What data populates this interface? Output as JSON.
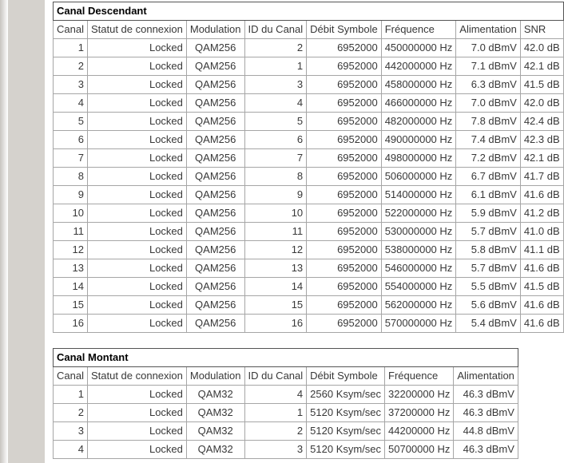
{
  "page": {
    "background_color": "#d5d2cd",
    "content_background": "#ffffff",
    "table_outer_border_color": "#545454",
    "cell_border_color": "#a6a6a6",
    "text_color": "#383838"
  },
  "downstream": {
    "title": "Canal Descendant",
    "columns": [
      "Canal",
      "Statut de connexion",
      "Modulation",
      "ID du Canal",
      "Débit Symbole",
      "Fréquence",
      "Alimentation",
      "SNR"
    ],
    "rows": [
      [
        "1",
        "Locked",
        "QAM256",
        "2",
        "6952000",
        "450000000 Hz",
        "7.0 dBmV",
        "42.0 dB"
      ],
      [
        "2",
        "Locked",
        "QAM256",
        "1",
        "6952000",
        "442000000 Hz",
        "7.1 dBmV",
        "42.1 dB"
      ],
      [
        "3",
        "Locked",
        "QAM256",
        "3",
        "6952000",
        "458000000 Hz",
        "6.3 dBmV",
        "41.5 dB"
      ],
      [
        "4",
        "Locked",
        "QAM256",
        "4",
        "6952000",
        "466000000 Hz",
        "7.0 dBmV",
        "42.0 dB"
      ],
      [
        "5",
        "Locked",
        "QAM256",
        "5",
        "6952000",
        "482000000 Hz",
        "7.8 dBmV",
        "42.4 dB"
      ],
      [
        "6",
        "Locked",
        "QAM256",
        "6",
        "6952000",
        "490000000 Hz",
        "7.4 dBmV",
        "42.3 dB"
      ],
      [
        "7",
        "Locked",
        "QAM256",
        "7",
        "6952000",
        "498000000 Hz",
        "7.2 dBmV",
        "42.1 dB"
      ],
      [
        "8",
        "Locked",
        "QAM256",
        "8",
        "6952000",
        "506000000 Hz",
        "6.7 dBmV",
        "41.7 dB"
      ],
      [
        "9",
        "Locked",
        "QAM256",
        "9",
        "6952000",
        "514000000 Hz",
        "6.1 dBmV",
        "41.6 dB"
      ],
      [
        "10",
        "Locked",
        "QAM256",
        "10",
        "6952000",
        "522000000 Hz",
        "5.9 dBmV",
        "41.2 dB"
      ],
      [
        "11",
        "Locked",
        "QAM256",
        "11",
        "6952000",
        "530000000 Hz",
        "5.7 dBmV",
        "41.0 dB"
      ],
      [
        "12",
        "Locked",
        "QAM256",
        "12",
        "6952000",
        "538000000 Hz",
        "5.8 dBmV",
        "41.1 dB"
      ],
      [
        "13",
        "Locked",
        "QAM256",
        "13",
        "6952000",
        "546000000 Hz",
        "5.7 dBmV",
        "41.6 dB"
      ],
      [
        "14",
        "Locked",
        "QAM256",
        "14",
        "6952000",
        "554000000 Hz",
        "5.5 dBmV",
        "41.5 dB"
      ],
      [
        "15",
        "Locked",
        "QAM256",
        "15",
        "6952000",
        "562000000 Hz",
        "5.6 dBmV",
        "41.6 dB"
      ],
      [
        "16",
        "Locked",
        "QAM256",
        "16",
        "6952000",
        "570000000 Hz",
        "5.4 dBmV",
        "41.6 dB"
      ]
    ]
  },
  "upstream": {
    "title": "Canal Montant",
    "columns": [
      "Canal",
      "Statut de connexion",
      "Modulation",
      "ID du Canal",
      "Débit Symbole",
      "Fréquence",
      "Alimentation"
    ],
    "rows": [
      [
        "1",
        "Locked",
        "QAM32",
        "4",
        "2560 Ksym/sec",
        "32200000 Hz",
        "46.3 dBmV"
      ],
      [
        "2",
        "Locked",
        "QAM32",
        "1",
        "5120 Ksym/sec",
        "37200000 Hz",
        "46.3 dBmV"
      ],
      [
        "3",
        "Locked",
        "QAM32",
        "2",
        "5120 Ksym/sec",
        "44200000 Hz",
        "44.8 dBmV"
      ],
      [
        "4",
        "Locked",
        "QAM32",
        "3",
        "5120 Ksym/sec",
        "50700000 Hz",
        "46.3 dBmV"
      ]
    ]
  }
}
